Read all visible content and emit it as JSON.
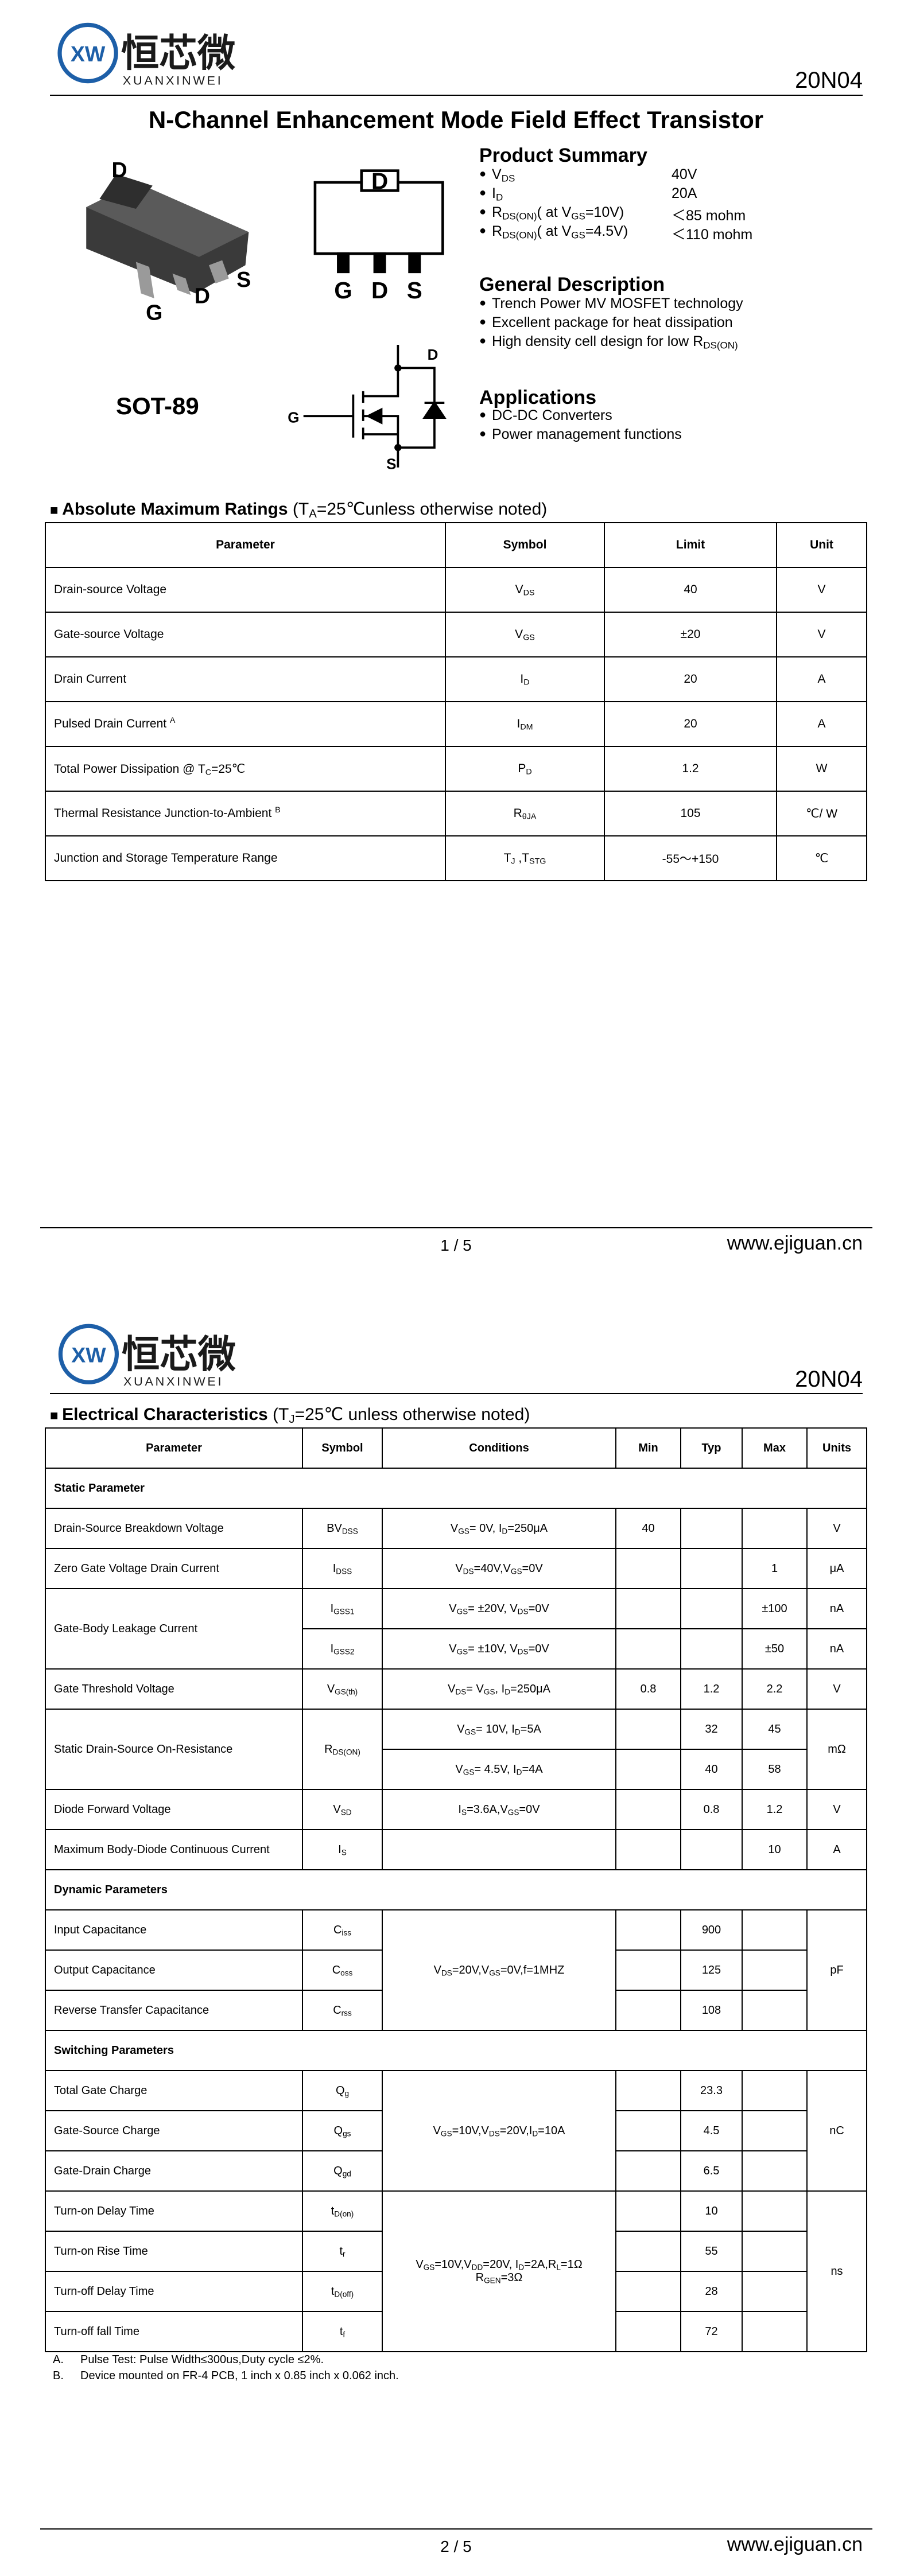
{
  "logo": {
    "mark": "XW",
    "chinese": "恒芯微",
    "latin": "XUANXINWEI"
  },
  "part_number": "20N04",
  "title": "N-Channel Enhancement Mode Field Effect Transistor",
  "package": {
    "name": "SOT-89",
    "photo_labels": [
      "D",
      "G",
      "D",
      "S"
    ],
    "top_view_labels": [
      "D",
      "G",
      "D",
      "S"
    ],
    "symbol_labels": [
      "D",
      "G",
      "S"
    ]
  },
  "product_summary": {
    "title": "Product Summary",
    "rows": [
      {
        "param": [
          "V",
          {
            "sub": "DS"
          }
        ],
        "value": "40V"
      },
      {
        "param": [
          "I",
          {
            "sub": "D"
          }
        ],
        "value": "20A"
      },
      {
        "param": [
          "R",
          {
            "sub": "DS(ON)"
          },
          "( at V",
          {
            "sub": "GS"
          },
          "=10V)"
        ],
        "value": "＜85 mohm"
      },
      {
        "param": [
          "R",
          {
            "sub": "DS(ON)"
          },
          "( at V",
          {
            "sub": "GS"
          },
          "=4.5V)"
        ],
        "value": "＜110 mohm"
      }
    ]
  },
  "general_description": {
    "title": "General Description",
    "items": [
      "Trench Power MV MOSFET technology",
      "Excellent package for heat dissipation",
      [
        "High density cell design for low R",
        {
          "sub": "DS(ON)"
        }
      ]
    ]
  },
  "applications": {
    "title": "Applications",
    "items": [
      "DC-DC Converters",
      "Power management functions"
    ]
  },
  "absolute_max": {
    "title": "Absolute Maximum Ratings",
    "condition": [
      " (T",
      {
        "sub": "A"
      },
      "=25℃unless otherwise noted)"
    ],
    "columns": [
      "Parameter",
      "Symbol",
      "Limit",
      "Unit"
    ],
    "rows": [
      {
        "parameter": "Drain-source Voltage",
        "symbol": [
          "V",
          {
            "sub": "DS"
          }
        ],
        "limit": 40,
        "unit": "V"
      },
      {
        "parameter": "Gate-source Voltage",
        "symbol": [
          "V",
          {
            "sub": "GS"
          }
        ],
        "limit": "±20",
        "unit": "V"
      },
      {
        "parameter": "Drain Current",
        "symbol": [
          "I",
          {
            "sub": "D"
          }
        ],
        "limit": 20,
        "unit": "A"
      },
      {
        "parameter": [
          "Pulsed Drain Current ",
          {
            "sup": "A"
          }
        ],
        "symbol": [
          "I",
          {
            "sub": "DM"
          }
        ],
        "limit": 20,
        "unit": "A"
      },
      {
        "parameter": [
          "Total Power Dissipation @ T",
          {
            "sub": "C"
          },
          "=25℃"
        ],
        "symbol": [
          "P",
          {
            "sub": "D"
          }
        ],
        "limit": 1.2,
        "unit": "W"
      },
      {
        "parameter": [
          "Thermal Resistance Junction-to-Ambient  ",
          {
            "sup": "B"
          }
        ],
        "symbol": [
          "R",
          {
            "sub": "θJA"
          }
        ],
        "limit": 105,
        "unit": "℃/ W"
      },
      {
        "parameter": "Junction and Storage Temperature Range",
        "symbol": [
          "T",
          {
            "sub": "J"
          },
          " ,T",
          {
            "sub": "STG"
          }
        ],
        "limit": "-55～+150",
        "unit": "℃"
      }
    ]
  },
  "electrical": {
    "title": "Electrical Characteristics",
    "condition": [
      " (T",
      {
        "sub": "J"
      },
      "=25℃ unless otherwise noted)"
    ],
    "columns": [
      "Parameter",
      "Symbol",
      "Conditions",
      "Min",
      "Typ",
      "Max",
      "Units"
    ],
    "rows": [
      {
        "section": "Static Parameter"
      },
      {
        "parameter": "Drain-Source Breakdown Voltage",
        "symbol": [
          "BV",
          {
            "sub": "DSS"
          }
        ],
        "conditions": [
          "V",
          {
            "sub": "GS"
          },
          "= 0V, I",
          {
            "sub": "D"
          },
          "=250μA"
        ],
        "min": 40,
        "units": "V"
      },
      {
        "parameter": "Zero Gate Voltage Drain Current",
        "symbol": [
          "I",
          {
            "sub": "DSS"
          }
        ],
        "conditions": [
          "V",
          {
            "sub": "DS"
          },
          "=40V,V",
          {
            "sub": "GS"
          },
          "=0V"
        ],
        "max": 1,
        "units": "μA"
      },
      {
        "parameter": "Gate-Body Leakage Current",
        "symbol": [
          "I",
          {
            "sub": "GSS1"
          }
        ],
        "conditions": [
          "V",
          {
            "sub": "GS"
          },
          "= ±20V, V",
          {
            "sub": "DS"
          },
          "=0V"
        ],
        "max": "±100",
        "units": "nA"
      },
      {
        "symbol": [
          "I",
          {
            "sub": "GSS2"
          }
        ],
        "conditions": [
          "V",
          {
            "sub": "GS"
          },
          "= ±10V, V",
          {
            "sub": "DS"
          },
          "=0V"
        ],
        "max": "±50",
        "units": "nA"
      },
      {
        "parameter": "Gate Threshold Voltage",
        "symbol": [
          "V",
          {
            "sub": "GS(th)"
          }
        ],
        "conditions": [
          "V",
          {
            "sub": "DS"
          },
          "= V",
          {
            "sub": "GS"
          },
          ", I",
          {
            "sub": "D"
          },
          "=250μA"
        ],
        "min": 0.8,
        "typ": 1.2,
        "max": 2.2,
        "units": "V"
      },
      {
        "parameter": "Static Drain-Source On-Resistance",
        "symbol": [
          "R",
          {
            "sub": "DS(ON)"
          }
        ],
        "conditions": [
          "V",
          {
            "sub": "GS"
          },
          "= 10V, I",
          {
            "sub": "D"
          },
          "=5A"
        ],
        "typ": 32,
        "max": 45,
        "units": "mΩ"
      },
      {
        "conditions": [
          "V",
          {
            "sub": "GS"
          },
          "= 4.5V, I",
          {
            "sub": "D"
          },
          "=4A"
        ],
        "typ": 40,
        "max": 58
      },
      {
        "parameter": "Diode Forward Voltage",
        "symbol": [
          "V",
          {
            "sub": "SD"
          }
        ],
        "conditions": [
          "I",
          {
            "sub": "S"
          },
          "=3.6A,V",
          {
            "sub": "GS"
          },
          "=0V"
        ],
        "typ": 0.8,
        "max": 1.2,
        "units": "V"
      },
      {
        "parameter": "Maximum Body-Diode Continuous Current",
        "symbol": [
          "I",
          {
            "sub": "S"
          }
        ],
        "max": 10,
        "units": "A"
      },
      {
        "section": "Dynamic Parameters"
      },
      {
        "parameter": "Input Capacitance",
        "symbol": [
          "C",
          {
            "sub": "iss"
          }
        ],
        "conditions": [
          "V",
          {
            "sub": "DS"
          },
          "=20V,V",
          {
            "sub": "GS"
          },
          "=0V,f=1MHZ"
        ],
        "typ": 900,
        "units": "pF"
      },
      {
        "parameter": "Output Capacitance",
        "symbol": [
          "C",
          {
            "sub": "oss"
          }
        ],
        "typ": 125
      },
      {
        "parameter": "Reverse Transfer Capacitance",
        "symbol": [
          "C",
          {
            "sub": "rss"
          }
        ],
        "typ": 108
      },
      {
        "section": "Switching Parameters"
      },
      {
        "parameter": "Total Gate Charge",
        "symbol": [
          "Q",
          {
            "sub": "g"
          }
        ],
        "conditions": [
          "V",
          {
            "sub": "GS"
          },
          "=10V,V",
          {
            "sub": "DS"
          },
          "=20V,I",
          {
            "sub": "D"
          },
          "=10A"
        ],
        "typ": 23.3,
        "units": "nC"
      },
      {
        "parameter": "Gate-Source Charge",
        "symbol": [
          "Q",
          {
            "sub": "gs"
          }
        ],
        "typ": 4.5
      },
      {
        "parameter": "Gate-Drain Charge",
        "symbol": [
          "Q",
          {
            "sub": "gd"
          }
        ],
        "typ": 6.5
      },
      {
        "parameter": "Turn-on Delay Time",
        "symbol": [
          "t",
          {
            "sub": "D(on)"
          }
        ],
        "conditions": [
          "V",
          {
            "sub": "GS"
          },
          "=10V,V",
          {
            "sub": "DD"
          },
          "=20V, I",
          {
            "sub": "D"
          },
          "=2A,R",
          {
            "sub": "L"
          },
          "=1Ω R",
          {
            "sub": "GEN"
          },
          "=3Ω"
        ],
        "typ": 10,
        "units": "ns"
      },
      {
        "parameter": "Turn-on Rise Time",
        "symbol": [
          "t",
          {
            "sub": "r"
          }
        ],
        "typ": 55
      },
      {
        "parameter": "Turn-off Delay Time",
        "symbol": [
          "t",
          {
            "sub": "D(off)"
          }
        ],
        "typ": 28
      },
      {
        "parameter": "Turn-off fall Time",
        "symbol": [
          "t",
          {
            "sub": "f"
          }
        ],
        "typ": 72
      }
    ]
  },
  "footnotes": [
    {
      "label": "A.",
      "text": "Pulse Test: Pulse Width≤300us,Duty cycle ≤2%."
    },
    {
      "label": "B.",
      "text": "Device mounted on FR-4 PCB, 1 inch x 0.85 inch x 0.062 inch."
    }
  ],
  "pages": [
    {
      "page_number": "1 / 5",
      "website": "www.ejiguan.cn"
    },
    {
      "page_number": "2 / 5",
      "website": "www.ejiguan.cn"
    }
  ]
}
